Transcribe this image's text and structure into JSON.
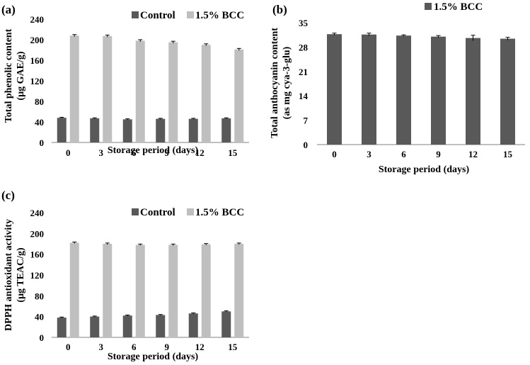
{
  "colors": {
    "control": "#595959",
    "bcc": "#bfbfbf",
    "axis": "#808080"
  },
  "chart_data": [
    {
      "type": "bar",
      "panel_label": "(a)",
      "title": "",
      "categories": [
        "0",
        "3",
        "6",
        "9",
        "12",
        "15"
      ],
      "series": [
        {
          "name": "Control",
          "values": [
            48,
            47,
            45,
            46,
            46,
            47
          ],
          "errors": [
            1,
            1,
            1,
            1,
            1,
            1
          ]
        },
        {
          "name": "1.5% BCC",
          "values": [
            208,
            207,
            198,
            195,
            190,
            181
          ],
          "errors": [
            2,
            2,
            2,
            2,
            2,
            2
          ]
        }
      ],
      "xlabel": "Storage period (days)",
      "ylabel_lines": [
        "Total phenolic content",
        "(µg GAE/g)"
      ],
      "ylim": [
        0,
        240
      ],
      "yticks": [
        "0",
        "40",
        "80",
        "120",
        "160",
        "200",
        "240"
      ],
      "legend": [
        "Control",
        "1.5% BCC"
      ],
      "legend_position": "top-right"
    },
    {
      "type": "bar",
      "panel_label": "(b)",
      "title": "",
      "categories": [
        "0",
        "3",
        "6",
        "9",
        "12",
        "15"
      ],
      "series": [
        {
          "name": "1.5% BCC",
          "values": [
            31.7,
            31.6,
            31.3,
            31.0,
            30.6,
            30.4
          ],
          "errors": [
            0.3,
            0.4,
            0.2,
            0.3,
            0.8,
            0.4
          ]
        }
      ],
      "xlabel": "Storage period (days)",
      "ylabel_lines": [
        "Total anthocyanin content",
        "(as mg cya-3-glu)"
      ],
      "ylim": [
        0,
        35
      ],
      "yticks": [
        "0",
        "7",
        "14",
        "21",
        "28",
        "35"
      ],
      "legend": [
        "1.5% BCC"
      ],
      "legend_position": "top-center"
    },
    {
      "type": "bar",
      "panel_label": "(c)",
      "title": "",
      "categories": [
        "0",
        "3",
        "6",
        "9",
        "12",
        "15"
      ],
      "series": [
        {
          "name": "Control",
          "values": [
            38,
            40,
            42,
            43,
            46,
            50
          ],
          "errors": [
            1,
            1,
            1,
            1,
            1,
            1
          ]
        },
        {
          "name": "1.5% BCC",
          "values": [
            182,
            180,
            178,
            178,
            179,
            180
          ],
          "errors": [
            1.5,
            1.5,
            1.5,
            1.5,
            1.5,
            1.5
          ]
        }
      ],
      "xlabel": "Storage period (days)",
      "ylabel_lines": [
        "DPPH antioxidant activity",
        "(µg TEAC/g)"
      ],
      "ylim": [
        0,
        240
      ],
      "yticks": [
        "0",
        "40",
        "80",
        "120",
        "160",
        "200",
        "240"
      ],
      "legend": [
        "Control",
        "1.5% BCC"
      ],
      "legend_position": "top-right"
    }
  ]
}
